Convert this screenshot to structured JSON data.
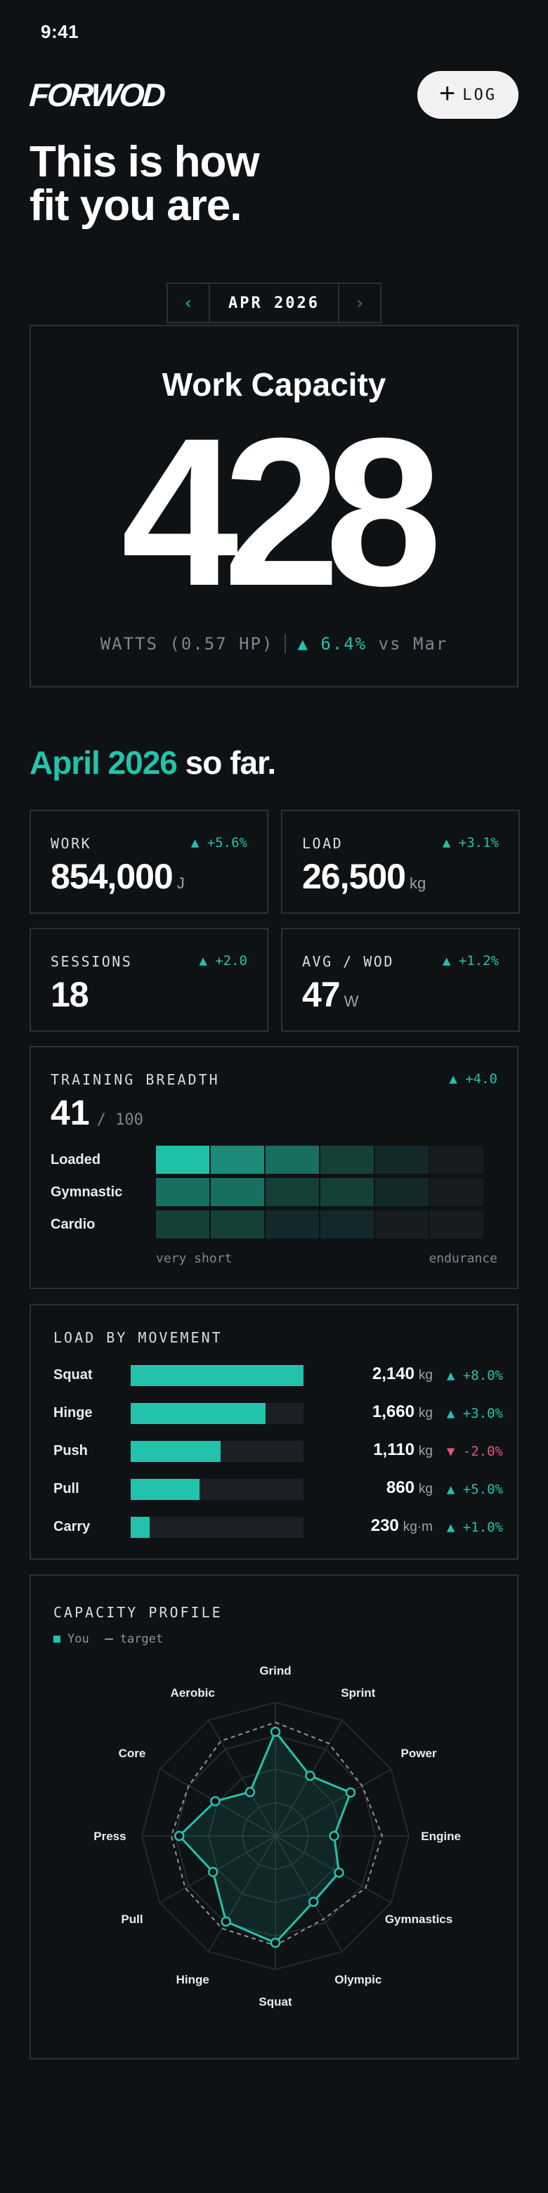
{
  "status": {
    "time": "9:41"
  },
  "header": {
    "logo": "FORWOD",
    "log_button": "LOG"
  },
  "hero": {
    "line1": "This is how",
    "line2": "fit you are."
  },
  "month_nav": {
    "prev": "‹",
    "month": "APR 2026",
    "next": "›"
  },
  "work_capacity": {
    "title": "Work Capacity",
    "value": "428",
    "unit": "WATTS (0.57 HP)",
    "delta": "▲ 6.4%",
    "compare": "vs Mar"
  },
  "so_far": {
    "accent": "April 2026",
    "rest": " so far."
  },
  "stats": [
    {
      "label": "WORK",
      "delta": "▲ +5.6%",
      "value": "854,000",
      "unit": "J"
    },
    {
      "label": "LOAD",
      "delta": "▲ +3.1%",
      "value": "26,500",
      "unit": "kg"
    },
    {
      "label": "SESSIONS",
      "delta": "▲ +2.0",
      "value": "18",
      "unit": ""
    },
    {
      "label": "AVG / WOD",
      "delta": "▲ +1.2%",
      "value": "47",
      "unit": "W"
    }
  ],
  "training_breadth": {
    "label": "TRAINING BREADTH",
    "delta": "▲ +4.0",
    "value": "41",
    "of": "/ 100",
    "rows": [
      {
        "name": "Loaded",
        "levels": [
          5,
          4,
          3,
          2,
          1,
          0
        ]
      },
      {
        "name": "Gymnastic",
        "levels": [
          3,
          3,
          2,
          2,
          1,
          0
        ]
      },
      {
        "name": "Cardio",
        "levels": [
          2,
          2,
          1,
          1,
          0,
          0
        ]
      }
    ],
    "axis_left": "very short",
    "axis_right": "endurance",
    "colors": [
      "#171c20",
      "#13282a",
      "#154038",
      "#186f60",
      "#1b8a78",
      "#1fc0a8"
    ]
  },
  "load_by_movement": {
    "label": "LOAD BY MOVEMENT",
    "rows": [
      {
        "name": "Squat",
        "value": "2,140",
        "unit": "kg",
        "delta": "▲ +8.0%",
        "fraction": 1.0,
        "negative": false
      },
      {
        "name": "Hinge",
        "value": "1,660",
        "unit": "kg",
        "delta": "▲ +3.0%",
        "fraction": 0.78,
        "negative": false
      },
      {
        "name": "Push",
        "value": "1,110",
        "unit": "kg",
        "delta": "▼ -2.0%",
        "fraction": 0.52,
        "negative": true
      },
      {
        "name": "Pull",
        "value": "860",
        "unit": "kg",
        "delta": "▲ +5.0%",
        "fraction": 0.4,
        "negative": false
      },
      {
        "name": "Carry",
        "value": "230",
        "unit": "kg·m",
        "delta": "▲ +1.0%",
        "fraction": 0.11,
        "negative": false
      }
    ]
  },
  "capacity_profile": {
    "label": "CAPACITY PROFILE",
    "legend_you": "You",
    "legend_target": "target",
    "axes": [
      "Grind",
      "Sprint",
      "Power",
      "Engine",
      "Gymnastics",
      "Olympic",
      "Squat",
      "Hinge",
      "Pull",
      "Press",
      "Core",
      "Aerobic"
    ],
    "you": [
      0.78,
      0.52,
      0.65,
      0.44,
      0.55,
      0.57,
      0.8,
      0.74,
      0.54,
      0.72,
      0.52,
      0.38
    ],
    "target": [
      0.85,
      0.8,
      0.75,
      0.8,
      0.78,
      0.72,
      0.82,
      0.8,
      0.78,
      0.78,
      0.75,
      0.82
    ]
  }
}
